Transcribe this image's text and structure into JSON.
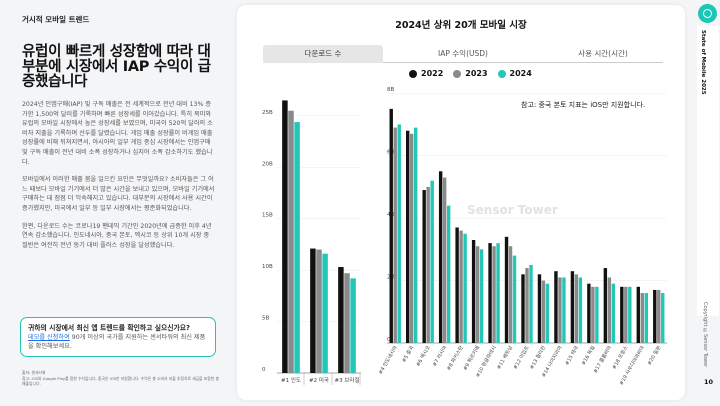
{
  "left": {
    "section": "거시적 모바일 트렌드",
    "headline": "유럽이 빠르게 성장함에 따라 대부분에 시장에서 IAP 수익이 급증했습니다",
    "p1": "2024년 인앱구매(IAP) 및 구독 매출은 전 세계적으로 전년 대비 13% 증가한 1,500억 달러를 기록하며 빠른 성장세를 이어갔습니다. 특히 북미와 유럽의 모바일 시장에서 높은 성장세를 보였으며, 미국이 520억 달러의 소비자 지출을 기록하며 선두를 달렸습니다. 게임 매출 성장률이 비게임 매출 성장률에 비해 뒤쳐지면서, 아시아의 일부 게임 중심 시장에서는 인앱구매 및 구독 매출이 전년 대비 소폭 성장하거나 심지어 소폭 감소하기도 했습니다.",
    "p2": "모바일에서 이러한 매출 붐을 일으킨 요인은 무엇일까요? 소비자들은 그 어느 때보다 모바일 기기에서 더 많은 시간을 보내고 있으며, 모바일 기기에서 구매하는 데 점점 더 익숙해지고 있습니다. 대부분의 시장에서 사용 시간이 증가했지만, 미국에서 일부 등 일부 시장에서는 평준화되었습니다.",
    "p3": "한편, 다운로드 수는 코로나19 팬데믹 기간인 2020년에 급증한 이후 4년 연속 감소했습니다. 인도네시아, 중국 본토, 멕시코 등 상위 10개 시장 중 절반은 여전히 전년 동기 대비 플러스 성장을 달성했습니다.",
    "cta_title": "귀하의 시장에서 최신 앱 트렌드를 확인하고 싶으신가요?",
    "cta_link": "데모를 신청하여",
    "cta_rest": " 90개 이상의 국가를 지원하는 센서타워의 최신 제품을 확인해보세요.",
    "source1": "출처: 센서타워",
    "source2": "참고: iOS와 Google Play를 합한 수치입니다. 중국은 iOS만 지원합니다. 수익은 총 소비자 지출 추정치로 세금을 포함한 총매출입니다."
  },
  "chart": {
    "tabs": [
      "다운로드 수",
      "IAP 수익(USD)",
      "사용 시간(시간)"
    ],
    "active_tab": 0,
    "note": "참고: 중국 본토 지표는 iOS만 지원합니다.",
    "watermark": "Sensor Tower"
  },
  "sidebar": {
    "title": "State of Mobile 2025",
    "copyright": "Copyright ©Sensor Tower",
    "page": "10"
  },
  "colors": {
    "2022": "#111111",
    "2023": "#8a8a8a",
    "2024": "#22c7b8",
    "accent": "#1cc7b6"
  },
  "chart_data": [
    {
      "type": "bar",
      "title": "2024년 상위 20개 모바일 시장",
      "categories": [
        "#1 인도",
        "#2 미국",
        "#3 브라질"
      ],
      "series": [
        {
          "name": "2022",
          "values": [
            26.5,
            12.1,
            10.3
          ]
        },
        {
          "name": "2023",
          "values": [
            25.5,
            12.0,
            9.7
          ]
        },
        {
          "name": "2024",
          "values": [
            24.4,
            11.6,
            9.2
          ]
        }
      ],
      "yticks": [
        0,
        5,
        10,
        15,
        20,
        25
      ],
      "ytick_labels": [
        "0",
        "5B",
        "10B",
        "15B",
        "20B",
        "25B"
      ],
      "ylim": [
        0,
        28
      ],
      "legend": "top-center"
    },
    {
      "type": "bar",
      "categories": [
        "#4 인도네시아",
        "#5 중국",
        "#6 멕시코",
        "#7 러시아",
        "#8 파키스탄",
        "#9 튀르키예",
        "#10 방글라데시",
        "#11 베트남",
        "#12 이집트",
        "#13 필리핀",
        "#14 나이지리아",
        "#15 태국",
        "#16 독일",
        "#17 콜롬비아",
        "#18 프랑스",
        "#19 사우디아라비아",
        "#20 일본"
      ],
      "series": [
        {
          "name": "2022",
          "values": [
            7.5,
            6.8,
            4.9,
            5.5,
            3.7,
            3.3,
            3.2,
            3.4,
            2.2,
            2.2,
            2.3,
            2.3,
            1.9,
            2.4,
            1.8,
            1.8,
            1.7
          ]
        },
        {
          "name": "2023",
          "values": [
            6.9,
            6.7,
            5.0,
            5.3,
            3.6,
            3.1,
            3.1,
            3.1,
            2.4,
            2.0,
            2.1,
            2.2,
            1.8,
            2.1,
            1.8,
            1.6,
            1.7
          ]
        },
        {
          "name": "2024",
          "values": [
            7.0,
            6.9,
            5.2,
            4.4,
            3.5,
            3.0,
            3.2,
            2.8,
            2.5,
            1.9,
            2.1,
            2.1,
            1.8,
            1.9,
            1.8,
            1.6,
            1.6
          ]
        }
      ],
      "yticks": [
        0,
        2,
        4,
        6,
        8
      ],
      "ytick_labels": [
        "0",
        "2B",
        "4B",
        "6B",
        "8B"
      ],
      "ylim": [
        0,
        8.2
      ]
    }
  ]
}
